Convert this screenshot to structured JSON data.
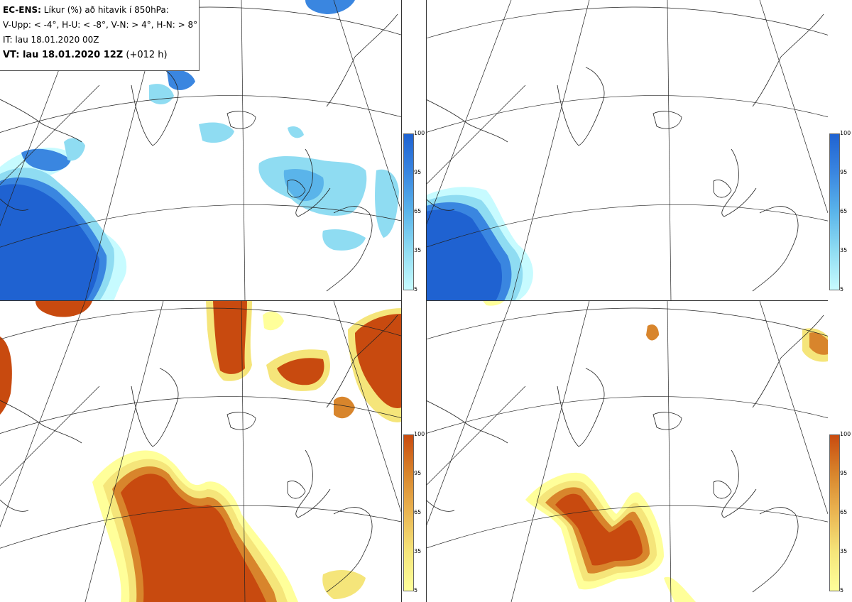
{
  "legend": {
    "model": "EC-ENS:",
    "title": "Líkur (%) að hitavik í 850hPa:",
    "thresholds": "V-Upp: < -4°, H-U: < -8°, V-N: > 4°, H-N: > 8°",
    "init_time": "IT: lau 18.01.2020 00Z",
    "valid_label": "VT: lau 18.01.2020 12Z",
    "lead": "(+012 h)"
  },
  "colorbars": {
    "cold": {
      "ticks": [
        "100",
        "95",
        "65",
        "35",
        "5"
      ],
      "colors": [
        "#1f62d1",
        "#3a86e0",
        "#5ab4ea",
        "#8fdcf2",
        "#c7fbff"
      ]
    },
    "warm": {
      "ticks": [
        "100",
        "95",
        "65",
        "35",
        "5"
      ],
      "colors": [
        "#c84a0f",
        "#d8852c",
        "#eab552",
        "#f5e57a",
        "#ffff9a"
      ]
    }
  },
  "panels": [
    {
      "id": "top-left",
      "variable": "V-Upp",
      "field": "cold"
    },
    {
      "id": "top-right",
      "variable": "H-U",
      "field": "cold"
    },
    {
      "id": "bottom-left",
      "variable": "V-N",
      "field": "warm"
    },
    {
      "id": "bottom-right",
      "variable": "H-N",
      "field": "warm"
    }
  ]
}
